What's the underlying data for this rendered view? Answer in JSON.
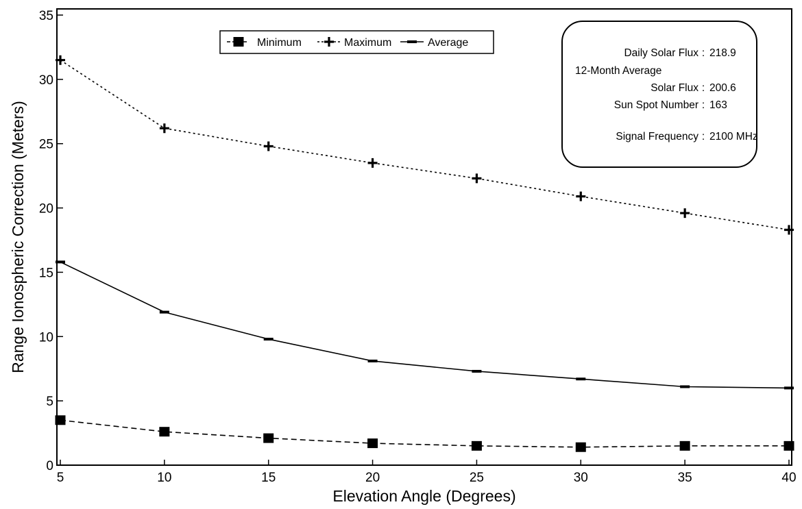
{
  "chart_data": {
    "type": "line",
    "xlabel": "Elevation Angle   (Degrees)",
    "ylabel": "Range Ionospheric Correction   (Meters)",
    "x": [
      5,
      10,
      15,
      20,
      25,
      30,
      35,
      40
    ],
    "xlim": [
      5,
      40
    ],
    "ylim": [
      0,
      35
    ],
    "xticks": [
      "5",
      "10",
      "15",
      "20",
      "25",
      "30",
      "35",
      "40"
    ],
    "yticks": [
      "0",
      "5",
      "10",
      "15",
      "20",
      "25",
      "30",
      "35"
    ],
    "grid": false,
    "legend_position": "top-center",
    "series": [
      {
        "name": "Minimum",
        "marker": "square",
        "dash": "dashed",
        "values": [
          3.5,
          2.6,
          2.1,
          1.7,
          1.5,
          1.4,
          1.5,
          1.5
        ]
      },
      {
        "name": "Maximum",
        "marker": "plus",
        "dash": "dotted",
        "values": [
          31.5,
          26.2,
          24.8,
          23.5,
          22.3,
          20.9,
          19.6,
          18.3
        ]
      },
      {
        "name": "Average",
        "marker": "dash",
        "dash": "solid",
        "values": [
          15.8,
          11.9,
          9.8,
          8.1,
          7.3,
          6.7,
          6.1,
          6.0
        ]
      }
    ],
    "annotation": {
      "rows": [
        {
          "label": "Daily Solar Flux",
          "sep": ":",
          "value": "218.9"
        },
        {
          "label": "12-Month Average",
          "sep": "",
          "value": ""
        },
        {
          "label": "Solar Flux",
          "sep": ":",
          "value": "200.6"
        },
        {
          "label": "Sun Spot Number",
          "sep": ":",
          "value": "163"
        },
        {
          "label": "Signal Frequency",
          "sep": ":",
          "value": "2100 MHz"
        }
      ]
    }
  }
}
